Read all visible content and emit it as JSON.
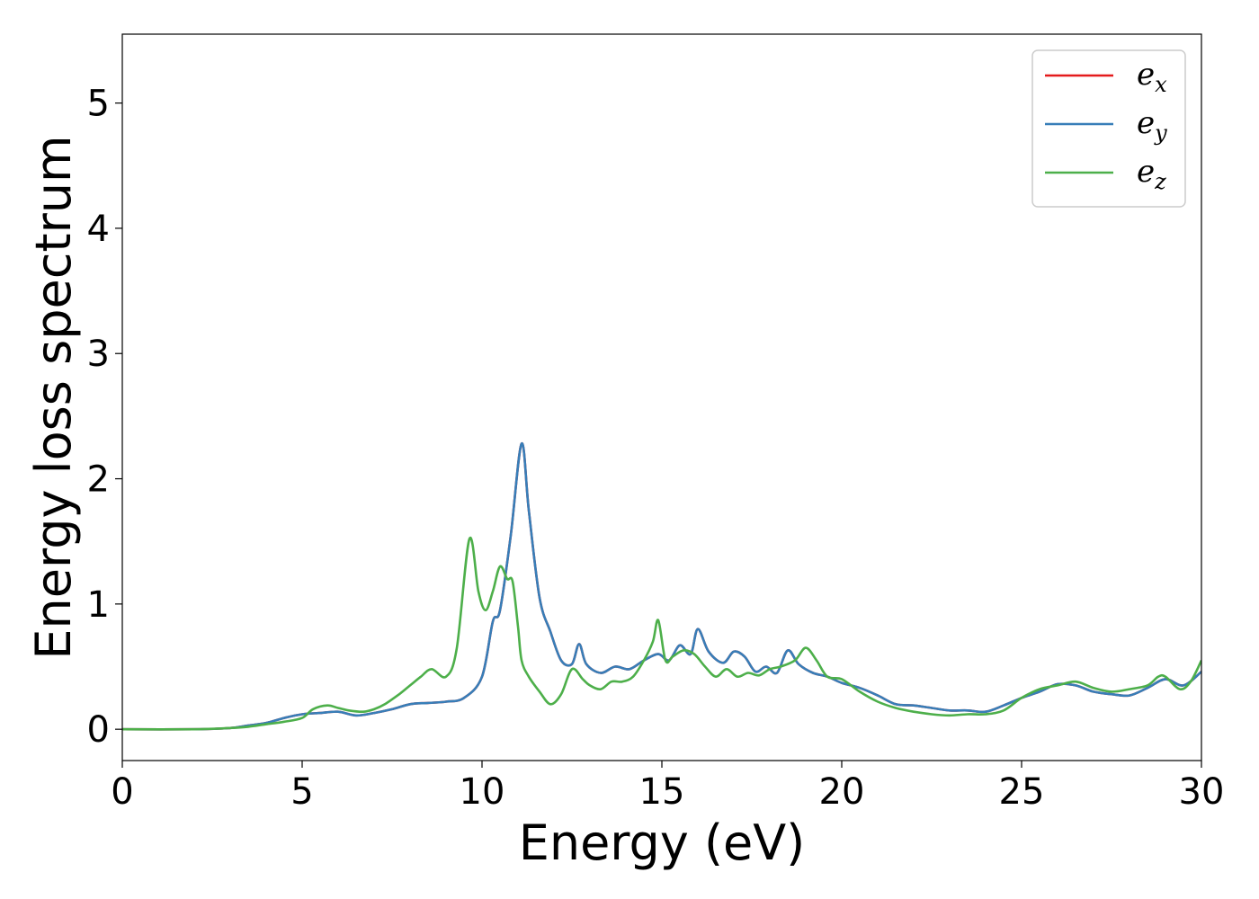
{
  "chart_data": {
    "type": "line",
    "xlabel": "Energy (eV)",
    "ylabel": "Energy loss spectrum",
    "xlim": [
      0,
      30
    ],
    "ylim": [
      -0.25,
      5.55
    ],
    "xticks": [
      0,
      5,
      10,
      15,
      20,
      25,
      30
    ],
    "xtick_labels": [
      "0",
      "5",
      "10",
      "15",
      "20",
      "25",
      "30"
    ],
    "yticks": [
      0,
      1,
      2,
      3,
      4,
      5
    ],
    "ytick_labels": [
      "0",
      "1",
      "2",
      "3",
      "4",
      "5"
    ],
    "grid": false,
    "legend_position": "top-right",
    "series": [
      {
        "name": "e_x",
        "legend_base": "e",
        "legend_sub": "x",
        "color": "#e41a1c",
        "x": [
          0,
          2,
          3,
          3.5,
          4,
          4.5,
          5,
          5.5,
          6,
          6.5,
          7,
          7.5,
          8,
          8.5,
          9,
          9.5,
          10,
          10.3,
          10.5,
          10.8,
          11.1,
          11.3,
          11.6,
          11.9,
          12.2,
          12.5,
          12.7,
          12.9,
          13.3,
          13.7,
          14.1,
          14.5,
          14.9,
          15.2,
          15.5,
          15.8,
          16,
          16.3,
          16.7,
          17,
          17.3,
          17.6,
          17.9,
          18.2,
          18.5,
          18.8,
          19.2,
          19.6,
          20,
          20.5,
          21,
          21.5,
          22,
          22.5,
          23,
          23.5,
          24,
          24.5,
          25,
          25.5,
          26,
          26.5,
          27,
          27.5,
          28,
          28.5,
          29,
          29.5,
          30
        ],
        "y": [
          0,
          0,
          0.01,
          0.03,
          0.05,
          0.09,
          0.12,
          0.13,
          0.14,
          0.11,
          0.13,
          0.16,
          0.2,
          0.21,
          0.22,
          0.25,
          0.42,
          0.86,
          0.95,
          1.55,
          2.28,
          1.75,
          1.05,
          0.78,
          0.55,
          0.52,
          0.68,
          0.52,
          0.45,
          0.5,
          0.48,
          0.55,
          0.6,
          0.55,
          0.67,
          0.6,
          0.8,
          0.62,
          0.53,
          0.62,
          0.58,
          0.46,
          0.5,
          0.45,
          0.63,
          0.52,
          0.45,
          0.42,
          0.37,
          0.33,
          0.27,
          0.2,
          0.19,
          0.17,
          0.15,
          0.15,
          0.14,
          0.19,
          0.25,
          0.3,
          0.36,
          0.35,
          0.3,
          0.28,
          0.27,
          0.33,
          0.4,
          0.35,
          0.46
        ]
      },
      {
        "name": "e_y",
        "legend_base": "e",
        "legend_sub": "y",
        "color": "#377eb8",
        "x": [
          0,
          2,
          3,
          3.5,
          4,
          4.5,
          5,
          5.5,
          6,
          6.5,
          7,
          7.5,
          8,
          8.5,
          9,
          9.5,
          10,
          10.3,
          10.5,
          10.8,
          11.1,
          11.3,
          11.6,
          11.9,
          12.2,
          12.5,
          12.7,
          12.9,
          13.3,
          13.7,
          14.1,
          14.5,
          14.9,
          15.2,
          15.5,
          15.8,
          16,
          16.3,
          16.7,
          17,
          17.3,
          17.6,
          17.9,
          18.2,
          18.5,
          18.8,
          19.2,
          19.6,
          20,
          20.5,
          21,
          21.5,
          22,
          22.5,
          23,
          23.5,
          24,
          24.5,
          25,
          25.5,
          26,
          26.5,
          27,
          27.5,
          28,
          28.5,
          29,
          29.5,
          30
        ],
        "y": [
          0,
          0,
          0.01,
          0.03,
          0.05,
          0.09,
          0.12,
          0.13,
          0.14,
          0.11,
          0.13,
          0.16,
          0.2,
          0.21,
          0.22,
          0.25,
          0.42,
          0.86,
          0.95,
          1.55,
          2.28,
          1.75,
          1.05,
          0.78,
          0.55,
          0.52,
          0.68,
          0.52,
          0.45,
          0.5,
          0.48,
          0.55,
          0.6,
          0.55,
          0.67,
          0.6,
          0.8,
          0.62,
          0.53,
          0.62,
          0.58,
          0.46,
          0.5,
          0.45,
          0.63,
          0.52,
          0.45,
          0.42,
          0.37,
          0.33,
          0.27,
          0.2,
          0.19,
          0.17,
          0.15,
          0.15,
          0.14,
          0.19,
          0.25,
          0.3,
          0.36,
          0.35,
          0.3,
          0.28,
          0.27,
          0.33,
          0.4,
          0.35,
          0.46
        ]
      },
      {
        "name": "e_z",
        "legend_base": "e",
        "legend_sub": "z",
        "color": "#4daf4a",
        "x": [
          0,
          2,
          3,
          3.5,
          4,
          4.5,
          5,
          5.3,
          5.7,
          6,
          6.3,
          6.7,
          7,
          7.3,
          7.7,
          8,
          8.3,
          8.6,
          9,
          9.3,
          9.65,
          9.9,
          10.1,
          10.3,
          10.5,
          10.7,
          10.85,
          11,
          11.1,
          11.3,
          11.6,
          11.9,
          12.2,
          12.5,
          12.8,
          13,
          13.3,
          13.6,
          13.9,
          14.2,
          14.5,
          14.75,
          14.9,
          15.1,
          15.3,
          15.6,
          15.9,
          16.2,
          16.5,
          16.8,
          17.1,
          17.4,
          17.7,
          18,
          18.3,
          18.7,
          19,
          19.3,
          19.6,
          20,
          20.5,
          21,
          21.5,
          22,
          22.5,
          23,
          23.5,
          24,
          24.5,
          25,
          25.5,
          26,
          26.5,
          27,
          27.5,
          28,
          28.5,
          28.8,
          29,
          29.4,
          29.7,
          30
        ],
        "y": [
          0,
          0,
          0.01,
          0.02,
          0.04,
          0.06,
          0.09,
          0.16,
          0.19,
          0.17,
          0.15,
          0.14,
          0.16,
          0.2,
          0.28,
          0.35,
          0.42,
          0.48,
          0.42,
          0.65,
          1.52,
          1.1,
          0.95,
          1.1,
          1.3,
          1.2,
          1.18,
          0.82,
          0.55,
          0.42,
          0.3,
          0.2,
          0.28,
          0.48,
          0.4,
          0.35,
          0.32,
          0.38,
          0.38,
          0.42,
          0.55,
          0.7,
          0.87,
          0.55,
          0.58,
          0.63,
          0.6,
          0.5,
          0.42,
          0.48,
          0.42,
          0.45,
          0.43,
          0.48,
          0.5,
          0.55,
          0.65,
          0.55,
          0.42,
          0.4,
          0.3,
          0.22,
          0.17,
          0.14,
          0.12,
          0.11,
          0.12,
          0.12,
          0.15,
          0.25,
          0.32,
          0.35,
          0.38,
          0.33,
          0.3,
          0.32,
          0.35,
          0.42,
          0.42,
          0.32,
          0.38,
          0.55
        ]
      }
    ]
  }
}
